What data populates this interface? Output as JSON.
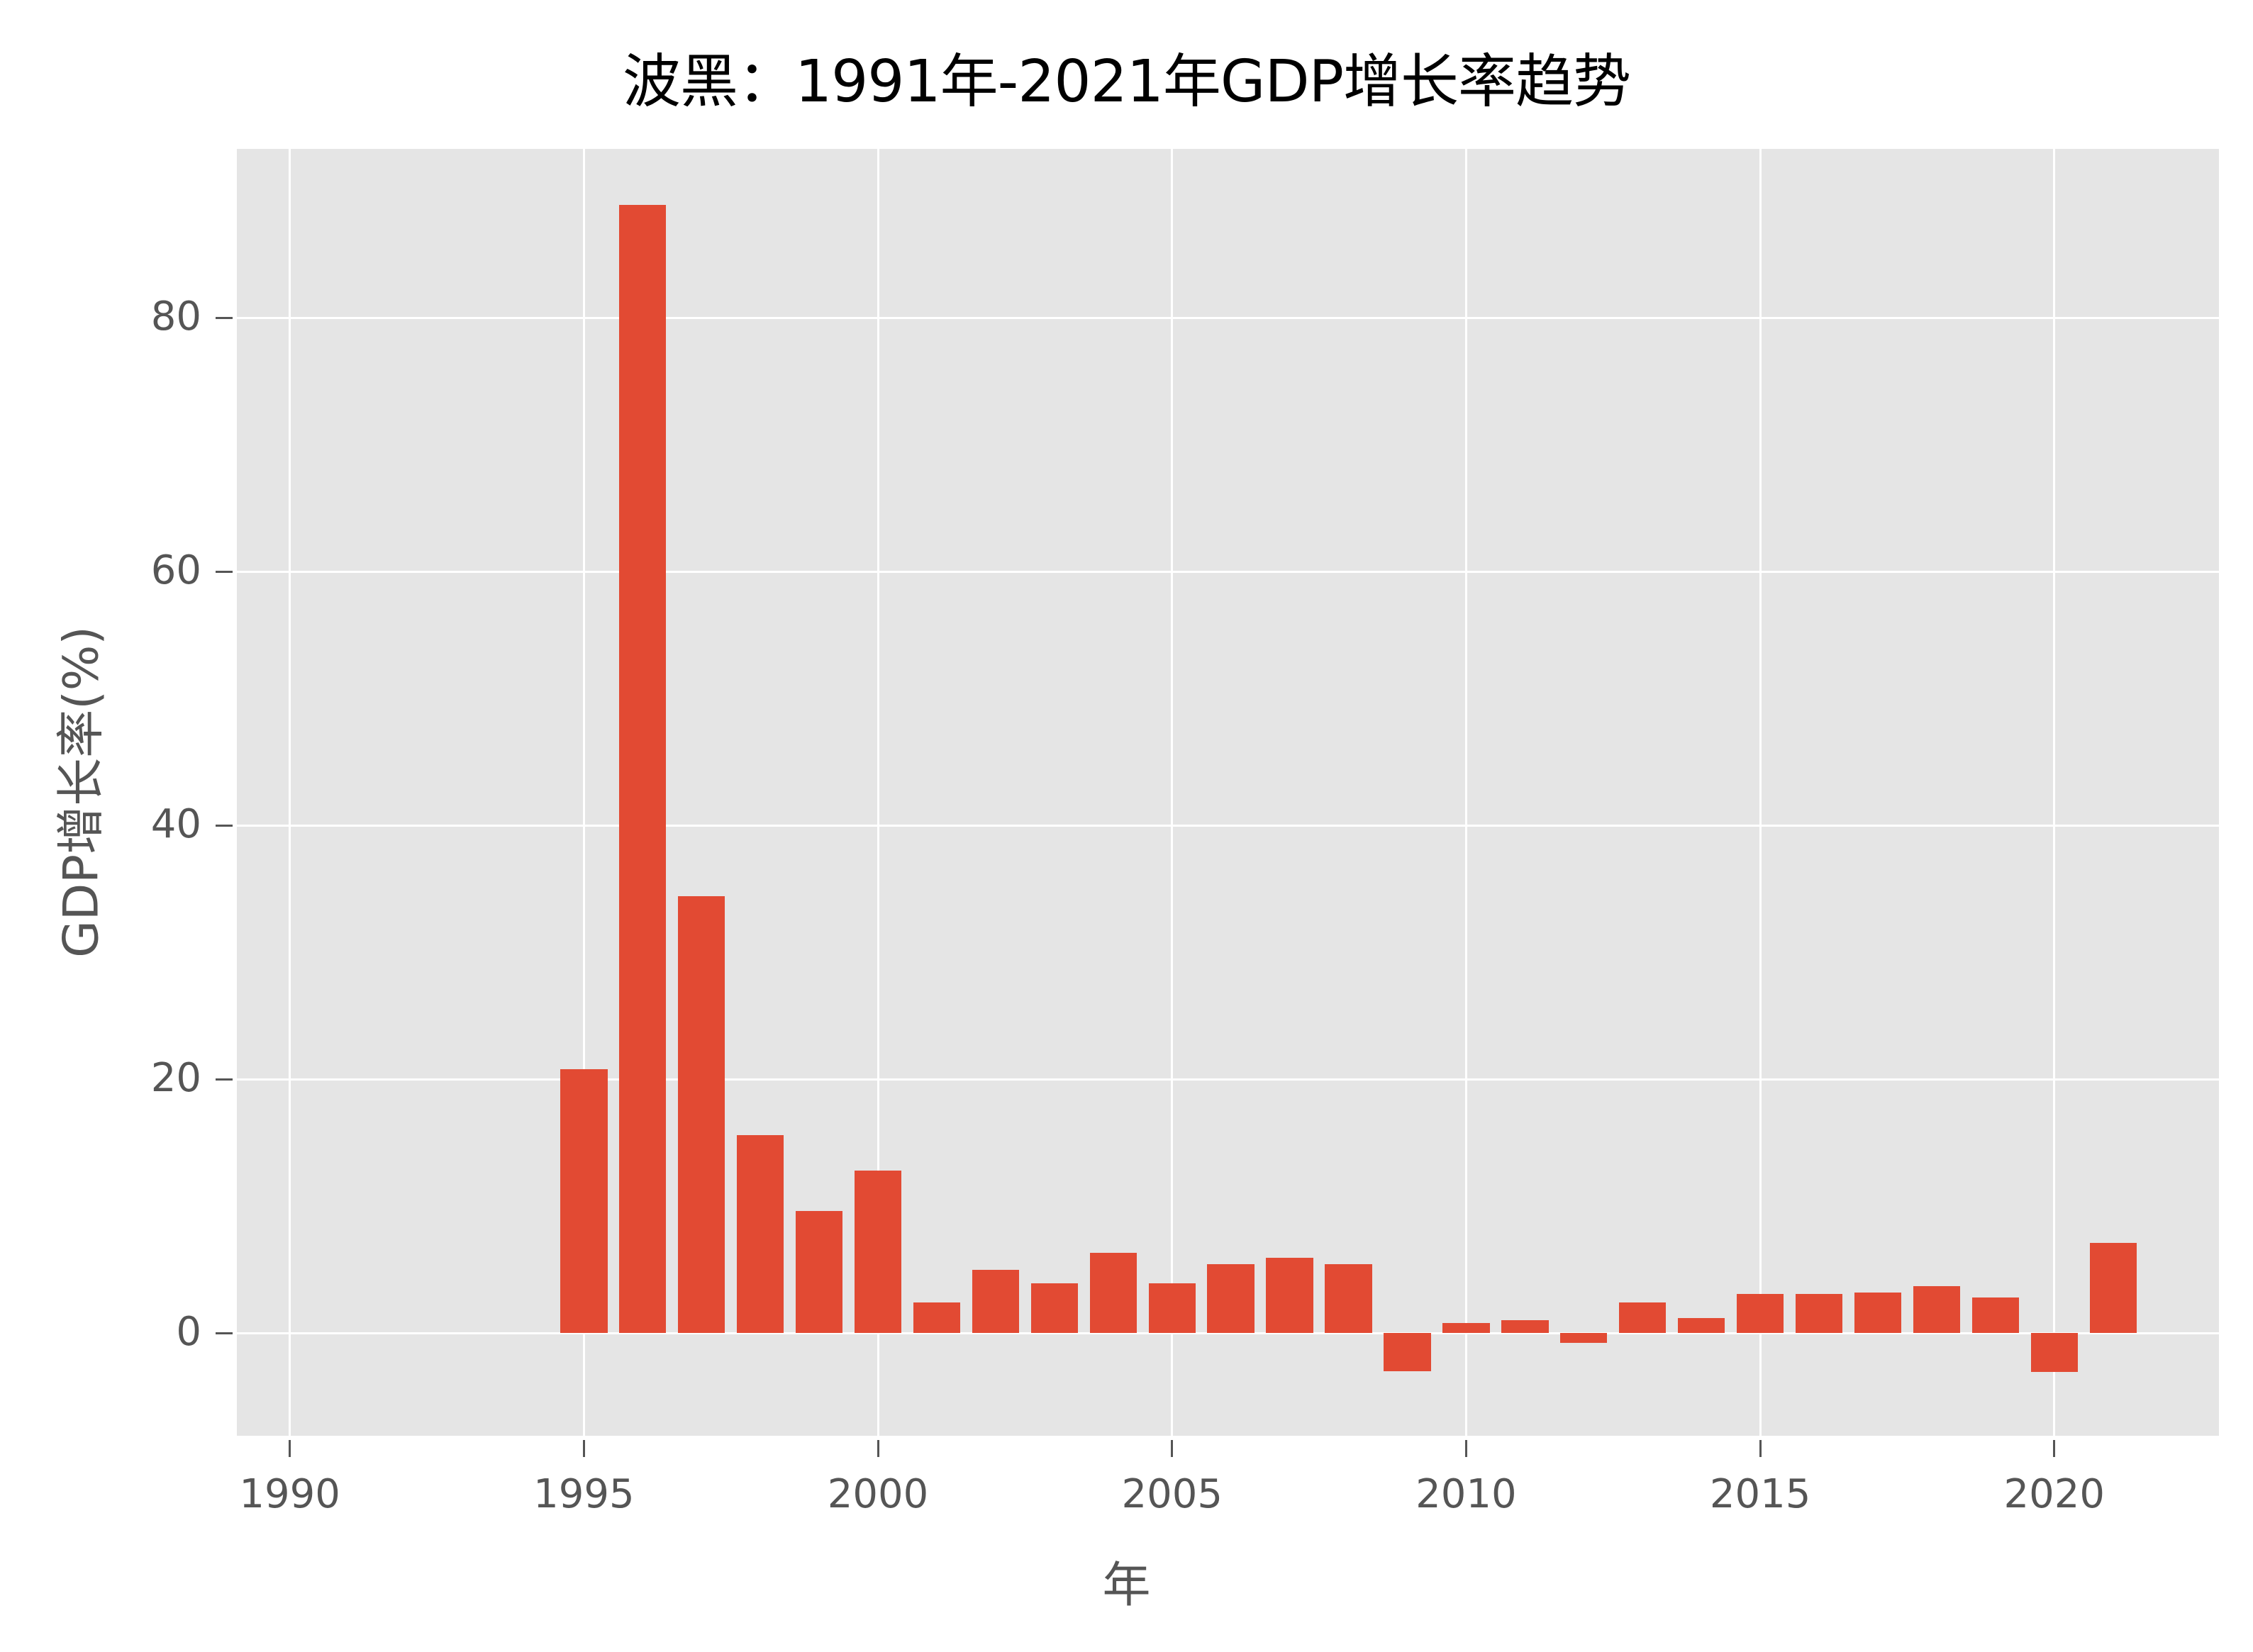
{
  "chart_data": {
    "type": "bar",
    "title": "波黑：1991年-2021年GDP增长率趋势",
    "xlabel": "年",
    "ylabel": "GDP增长率(%)",
    "categories": [
      1995,
      1996,
      1997,
      1998,
      1999,
      2000,
      2001,
      2002,
      2003,
      2004,
      2005,
      2006,
      2007,
      2008,
      2009,
      2010,
      2011,
      2012,
      2013,
      2014,
      2015,
      2016,
      2017,
      2018,
      2019,
      2020,
      2021
    ],
    "values": [
      20.8,
      88.9,
      34.4,
      15.6,
      9.6,
      12.8,
      2.4,
      5.0,
      3.9,
      6.3,
      3.9,
      5.4,
      5.9,
      5.4,
      -3.0,
      0.8,
      1.0,
      -0.8,
      2.4,
      1.2,
      3.1,
      3.1,
      3.2,
      3.7,
      2.8,
      -3.1,
      7.1
    ],
    "xticks": [
      1990,
      1995,
      2000,
      2005,
      2010,
      2015,
      2020
    ],
    "yticks": [
      0,
      20,
      40,
      60,
      80
    ],
    "xlim": [
      1989.1,
      2022.8
    ],
    "ylim": [
      -8.1,
      93.3
    ],
    "grid": true,
    "legend": null,
    "colors": {
      "bar": "#e24a33",
      "background": "#e5e5e5",
      "grid": "#ffffff",
      "tick_text": "#555555"
    }
  }
}
